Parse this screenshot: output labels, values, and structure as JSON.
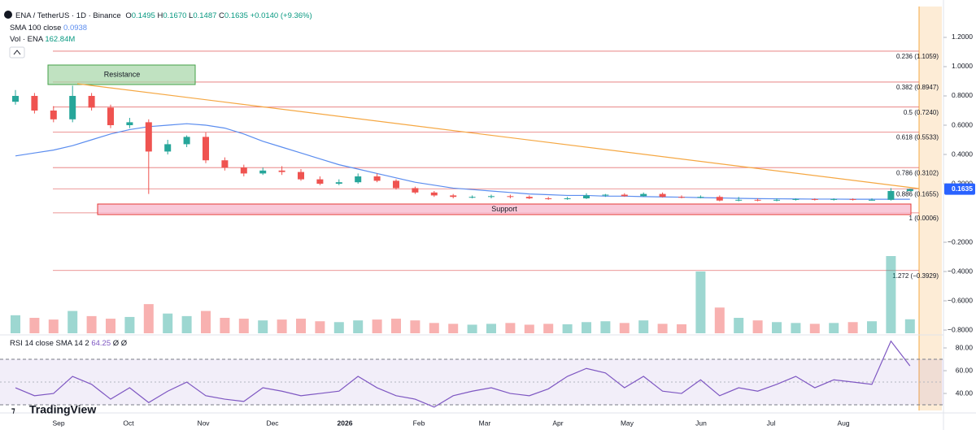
{
  "header": {
    "symbol": "ENA / TetherUS · 1D · Binance",
    "o_label": "O",
    "open": "0.1495",
    "h_label": "H",
    "high": "0.1670",
    "l_label": "L",
    "low": "0.1487",
    "c_label": "C",
    "close": "0.1635",
    "change": "+0.0140 (+9.36%)",
    "sma_legend": "SMA 100 close",
    "sma_value": "0.0938",
    "vol_legend": "Vol · ENA",
    "vol_value": "162.84M",
    "rsi_legend": "RSI 14 close SMA 14 2",
    "rsi_value": "64.25",
    "rsi_extra": "Ø Ø",
    "logo": "TradingView",
    "resistance": "Resistance",
    "support": "Support"
  },
  "chart_data": {
    "type": "candlestick",
    "time_labels": [
      "Sep",
      "Oct",
      "Nov",
      "Dec",
      "2026",
      "Feb",
      "Mar",
      "Apr",
      "May",
      "Jun",
      "Jul",
      "Aug"
    ],
    "open": [
      0.76,
      0.8,
      0.7,
      0.64,
      0.8,
      0.72,
      0.6,
      0.62,
      0.42,
      0.47,
      0.52,
      0.36,
      0.31,
      0.27,
      0.29,
      0.28,
      0.23,
      0.2,
      0.21,
      0.25,
      0.22,
      0.17,
      0.14,
      0.12,
      0.11,
      0.11,
      0.115,
      0.11,
      0.1,
      0.095,
      0.1,
      0.12,
      0.125,
      0.115,
      0.13,
      0.11,
      0.105,
      0.11,
      0.085,
      0.09,
      0.085,
      0.09,
      0.095,
      0.09,
      0.095,
      0.09,
      0.09,
      0.1495
    ],
    "high": [
      0.84,
      0.82,
      0.73,
      0.87,
      0.82,
      0.74,
      0.65,
      0.64,
      0.5,
      0.53,
      0.55,
      0.38,
      0.33,
      0.31,
      0.32,
      0.3,
      0.25,
      0.23,
      0.27,
      0.27,
      0.23,
      0.18,
      0.15,
      0.13,
      0.12,
      0.125,
      0.125,
      0.12,
      0.11,
      0.11,
      0.135,
      0.13,
      0.135,
      0.14,
      0.14,
      0.12,
      0.12,
      0.12,
      0.11,
      0.1,
      0.1,
      0.1,
      0.1,
      0.1,
      0.1,
      0.1,
      0.17,
      0.167
    ],
    "low": [
      0.74,
      0.68,
      0.62,
      0.62,
      0.7,
      0.58,
      0.58,
      0.13,
      0.4,
      0.45,
      0.34,
      0.29,
      0.25,
      0.26,
      0.26,
      0.22,
      0.19,
      0.19,
      0.2,
      0.21,
      0.16,
      0.13,
      0.11,
      0.1,
      0.1,
      0.1,
      0.1,
      0.095,
      0.09,
      0.09,
      0.095,
      0.11,
      0.11,
      0.11,
      0.105,
      0.1,
      0.1,
      0.08,
      0.08,
      0.08,
      0.08,
      0.085,
      0.085,
      0.085,
      0.085,
      0.085,
      0.085,
      0.1487
    ],
    "close": [
      0.8,
      0.7,
      0.64,
      0.8,
      0.72,
      0.6,
      0.62,
      0.42,
      0.47,
      0.52,
      0.36,
      0.31,
      0.27,
      0.29,
      0.28,
      0.23,
      0.2,
      0.21,
      0.25,
      0.22,
      0.17,
      0.14,
      0.12,
      0.11,
      0.11,
      0.115,
      0.11,
      0.1,
      0.095,
      0.1,
      0.12,
      0.125,
      0.115,
      0.13,
      0.11,
      0.105,
      0.11,
      0.085,
      0.09,
      0.085,
      0.09,
      0.095,
      0.09,
      0.095,
      0.09,
      0.09,
      0.15,
      0.1635
    ],
    "up_color": "#26a69a",
    "down_color": "#ef5350",
    "sma": {
      "name": "SMA 100",
      "color": "#5b8def",
      "values": [
        0.39,
        0.41,
        0.43,
        0.46,
        0.5,
        0.54,
        0.57,
        0.59,
        0.6,
        0.61,
        0.6,
        0.58,
        0.54,
        0.49,
        0.45,
        0.41,
        0.37,
        0.33,
        0.3,
        0.27,
        0.24,
        0.21,
        0.19,
        0.17,
        0.16,
        0.15,
        0.14,
        0.13,
        0.125,
        0.12,
        0.12,
        0.115,
        0.115,
        0.112,
        0.11,
        0.108,
        0.105,
        0.103,
        0.1,
        0.098,
        0.097,
        0.096,
        0.095,
        0.095,
        0.094,
        0.094,
        0.094,
        0.0938
      ]
    },
    "volume": [
      210,
      180,
      160,
      260,
      200,
      170,
      190,
      340,
      230,
      200,
      260,
      180,
      170,
      150,
      160,
      170,
      140,
      130,
      150,
      160,
      170,
      150,
      120,
      110,
      100,
      110,
      120,
      100,
      110,
      105,
      130,
      140,
      120,
      150,
      110,
      105,
      720,
      300,
      180,
      150,
      130,
      120,
      110,
      120,
      130,
      140,
      900,
      162.84
    ],
    "fib": {
      "color": "#e57373",
      "values": [
        1.1059,
        0.8947,
        0.724,
        0.5533,
        0.3102,
        0.1655,
        0.0006,
        -0.3929
      ],
      "value_labels": [
        "0.236 (1.1059)",
        "0.382 (0.8947)",
        "0.5 (0.7240)",
        "0.618 (0.5533)",
        "0.786 (0.3102)",
        "0.886 (0.1655)",
        "1 (0.0006)",
        "1.272 (−0.3929)"
      ]
    },
    "ylim": [
      -0.822,
      1.411
    ],
    "yticks": [
      {
        "value": 1.2,
        "label": "1.2000"
      },
      {
        "value": 1.0,
        "label": "1.0000"
      },
      {
        "value": 0.8,
        "label": "0.8000"
      },
      {
        "value": 0.6,
        "label": "0.6000"
      },
      {
        "value": 0.4,
        "label": "0.4000"
      },
      {
        "value": 0.2,
        "label": "0.2000"
      },
      {
        "value": -0.2,
        "label": "−0.2000"
      },
      {
        "value": -0.4,
        "label": "−0.4000"
      },
      {
        "value": -0.6,
        "label": "−0.6000"
      },
      {
        "value": -0.8,
        "label": "−0.8000"
      }
    ],
    "rsi": {
      "color": "#7e57c2",
      "values": [
        45,
        38,
        40,
        55,
        48,
        35,
        45,
        32,
        42,
        50,
        38,
        35,
        33,
        45,
        42,
        38,
        40,
        42,
        55,
        45,
        38,
        35,
        28,
        38,
        42,
        45,
        40,
        38,
        44,
        55,
        62,
        58,
        45,
        55,
        42,
        40,
        52,
        38,
        45,
        42,
        48,
        55,
        45,
        52,
        50,
        48,
        86,
        64.25
      ],
      "ylim": [
        28.6,
        89.3
      ],
      "yticks": [
        {
          "value": 80,
          "label": "80.00"
        },
        {
          "value": 60,
          "label": "60.00"
        },
        {
          "value": 40,
          "label": "40.00"
        }
      ],
      "bands": [
        70,
        30
      ],
      "midline": 50
    }
  }
}
